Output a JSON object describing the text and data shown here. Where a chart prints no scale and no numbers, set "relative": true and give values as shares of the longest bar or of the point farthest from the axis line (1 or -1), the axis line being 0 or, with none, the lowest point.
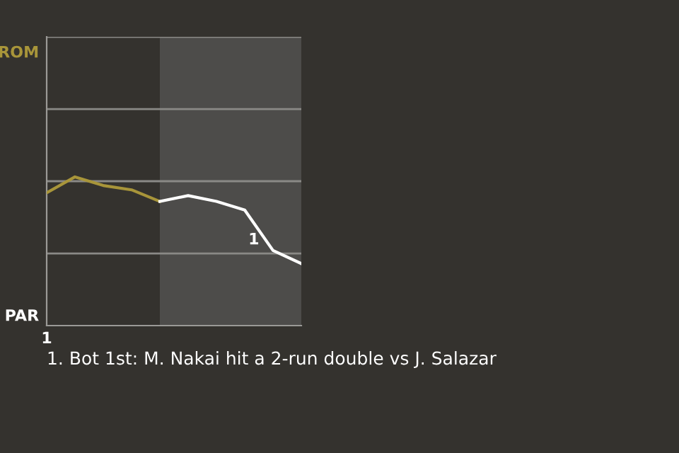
{
  "chart_data": {
    "type": "line",
    "relative": true,
    "categories": [
      null,
      null,
      null,
      null,
      null,
      null,
      null,
      null,
      null,
      null
    ],
    "series": [
      {
        "color": "#a8953a",
        "values": [
          0.893,
          1,
          0.942,
          0.913,
          0.835,
          null,
          null,
          null,
          null,
          null
        ]
      },
      {
        "color": "#ffffff",
        "values": [
          null,
          null,
          null,
          null,
          0.835,
          0.874,
          0.835,
          0.777,
          0.505,
          0.417
        ]
      }
    ],
    "ref_lines": [
      {
        "axis": "y",
        "value": 0.485,
        "color": "#8a8986"
      },
      {
        "axis": "y",
        "value": 0.971,
        "color": "#8a8986"
      },
      {
        "axis": "y",
        "value": 1.456,
        "color": "#8a8986"
      },
      {
        "axis": "y",
        "value": 1.942,
        "color": "#8a8986"
      }
    ],
    "marker": "none",
    "line_style": "solid",
    "annotations": [
      "ROM",
      "PAR",
      "1",
      "1",
      "1. Bot 1st: M. Nakai hit a 2-run double vs J. Salazar"
    ]
  }
}
